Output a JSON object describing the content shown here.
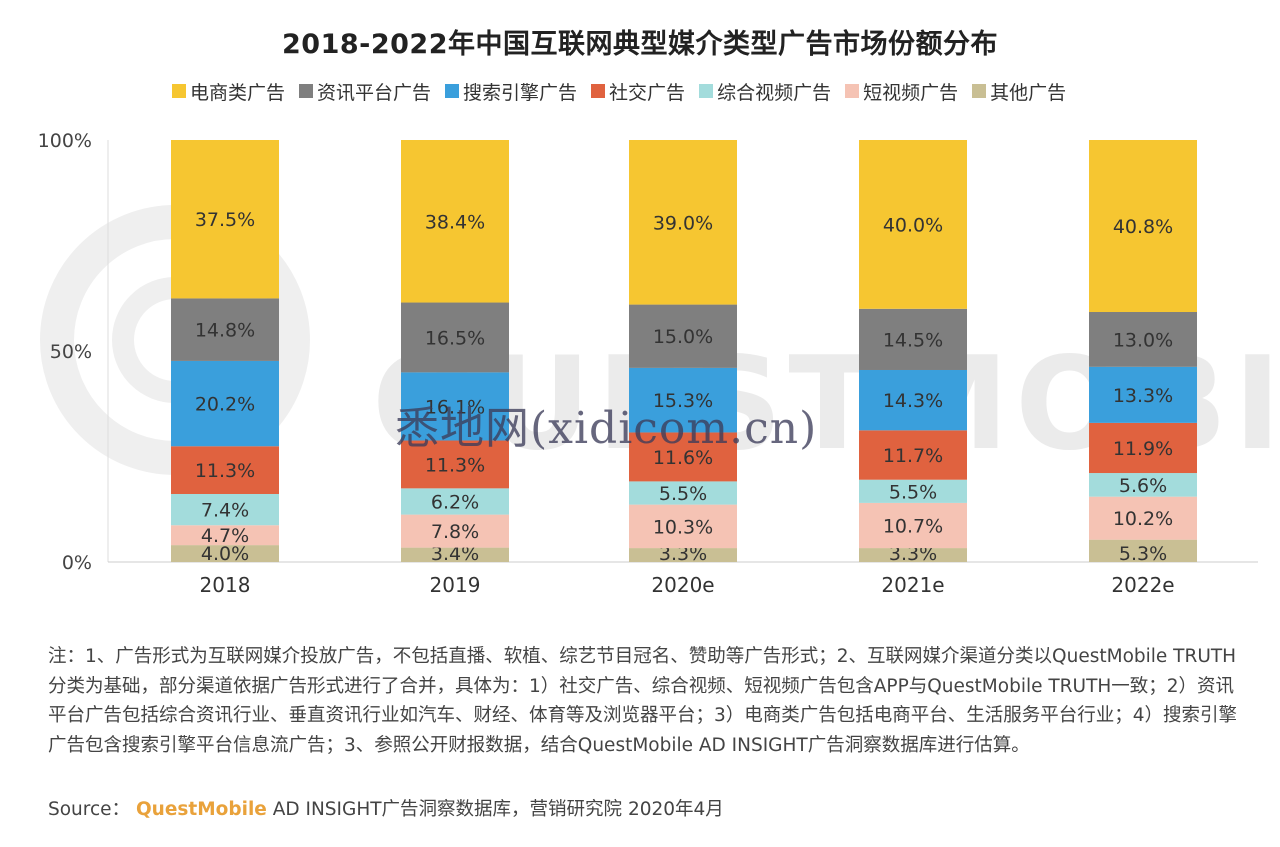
{
  "chart_data": {
    "type": "bar",
    "stacked": true,
    "title": "2018-2022年中国互联网典型媒介类型广告市场份额分布",
    "categories": [
      "2018",
      "2019",
      "2020e",
      "2021e",
      "2022e"
    ],
    "ylim": [
      0,
      100
    ],
    "yticks": [
      "0%",
      "50%",
      "100%"
    ],
    "legend_position": "top",
    "grid": false,
    "series": [
      {
        "name": "其他广告",
        "color": "#c9bf94",
        "values": [
          4.0,
          3.4,
          3.3,
          3.3,
          5.3
        ],
        "labels": [
          "4.0%",
          "3.4%",
          "3.3%",
          "3.3%",
          "5.3%"
        ]
      },
      {
        "name": "短视频广告",
        "color": "#f5c3b4",
        "values": [
          4.7,
          7.8,
          10.3,
          10.7,
          10.2
        ],
        "labels": [
          "4.7%",
          "7.8%",
          "10.3%",
          "10.7%",
          "10.2%"
        ]
      },
      {
        "name": "综合视频广告",
        "color": "#a3dcdc",
        "values": [
          7.4,
          6.2,
          5.5,
          5.5,
          5.6
        ],
        "labels": [
          "7.4%",
          "6.2%",
          "5.5%",
          "5.5%",
          "5.6%"
        ]
      },
      {
        "name": "社交广告",
        "color": "#e0623f",
        "values": [
          11.3,
          11.3,
          11.6,
          11.7,
          11.9
        ],
        "labels": [
          "11.3%",
          "11.3%",
          "11.6%",
          "11.7%",
          "11.9%"
        ]
      },
      {
        "name": "搜索引擎广告",
        "color": "#3a9fdc",
        "values": [
          20.2,
          16.1,
          15.3,
          14.3,
          13.3
        ],
        "labels": [
          "20.2%",
          "16.1%",
          "15.3%",
          "14.3%",
          "13.3%"
        ]
      },
      {
        "name": "资讯平台广告",
        "color": "#7f7f7f",
        "values": [
          14.8,
          16.5,
          15.0,
          14.5,
          13.0
        ],
        "labels": [
          "14.8%",
          "16.5%",
          "15.0%",
          "14.5%",
          "13.0%"
        ]
      },
      {
        "name": "电商类广告",
        "color": "#f6c631",
        "values": [
          37.5,
          38.4,
          39.0,
          40.0,
          40.8
        ],
        "labels": [
          "37.5%",
          "38.4%",
          "39.0%",
          "40.0%",
          "40.8%"
        ]
      }
    ],
    "legend_order": [
      "电商类广告",
      "资讯平台广告",
      "搜索引擎广告",
      "社交广告",
      "综合视频广告",
      "短视频广告",
      "其他广告"
    ]
  },
  "watermark": {
    "text": "悉地网(xidicom.cn)",
    "brand": "QUESTMOBILE",
    "brand_color": "#ebebeb"
  },
  "notes": "注：1、广告形式为互联网媒介投放广告，不包括直播、软植、综艺节目冠名、赞助等广告形式；2、互联网媒介渠道分类以QuestMobile TRUTH分类为基础，部分渠道依据广告形式进行了合并，具体为：1）社交广告、综合视频、短视频广告包含APP与QuestMobile TRUTH一致；2）资讯平台广告包括综合资讯行业、垂直资讯行业如汽车、财经、体育等及浏览器平台；3）电商类广告包括电商平台、生活服务平台行业；4）搜索引擎广告包含搜索引擎平台信息流广告；3、参照公开财报数据，结合QuestMobile AD INSIGHT广告洞察数据库进行估算。",
  "source": {
    "prefix": "Source：",
    "brand": "QuestMobile",
    "rest": "AD INSIGHT广告洞察数据库，营销研究院 2020年4月"
  }
}
